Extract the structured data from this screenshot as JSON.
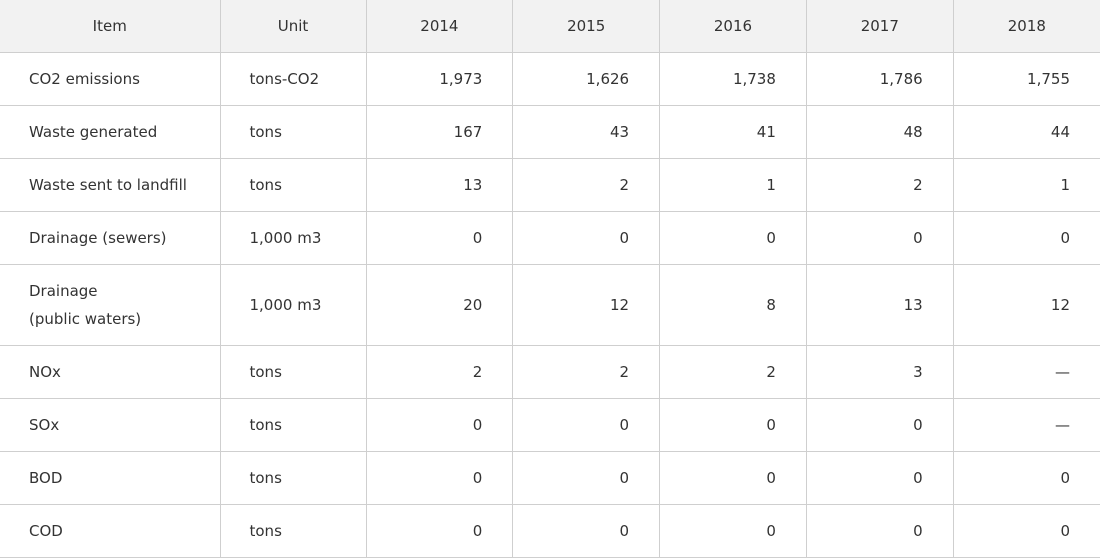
{
  "table": {
    "headers": [
      "Item",
      "Unit",
      "2014",
      "2015",
      "2016",
      "2017",
      "2018"
    ],
    "rows": [
      {
        "item": "CO2 emissions",
        "unit": "tons-CO2",
        "values": [
          "1,973",
          "1,626",
          "1,738",
          "1,786",
          "1,755"
        ]
      },
      {
        "item": "Waste generated",
        "unit": "tons",
        "values": [
          "167",
          "43",
          "41",
          "48",
          "44"
        ]
      },
      {
        "item": "Waste sent to landfill",
        "unit": "tons",
        "values": [
          "13",
          "2",
          "1",
          "2",
          "1"
        ]
      },
      {
        "item": "Drainage (sewers)",
        "unit": "1,000 m3",
        "values": [
          "0",
          "0",
          "0",
          "0",
          "0"
        ]
      },
      {
        "item": "Drainage\n(public waters)",
        "unit": "1,000 m3",
        "values": [
          "20",
          "12",
          "8",
          "13",
          "12"
        ]
      },
      {
        "item": "NOx",
        "unit": "tons",
        "values": [
          "2",
          "2",
          "2",
          "3",
          "—"
        ]
      },
      {
        "item": "SOx",
        "unit": "tons",
        "values": [
          "0",
          "0",
          "0",
          "0",
          "—"
        ]
      },
      {
        "item": "BOD",
        "unit": "tons",
        "values": [
          "0",
          "0",
          "0",
          "0",
          "0"
        ]
      },
      {
        "item": "COD",
        "unit": "tons",
        "values": [
          "0",
          "0",
          "0",
          "0",
          "0"
        ]
      }
    ]
  }
}
